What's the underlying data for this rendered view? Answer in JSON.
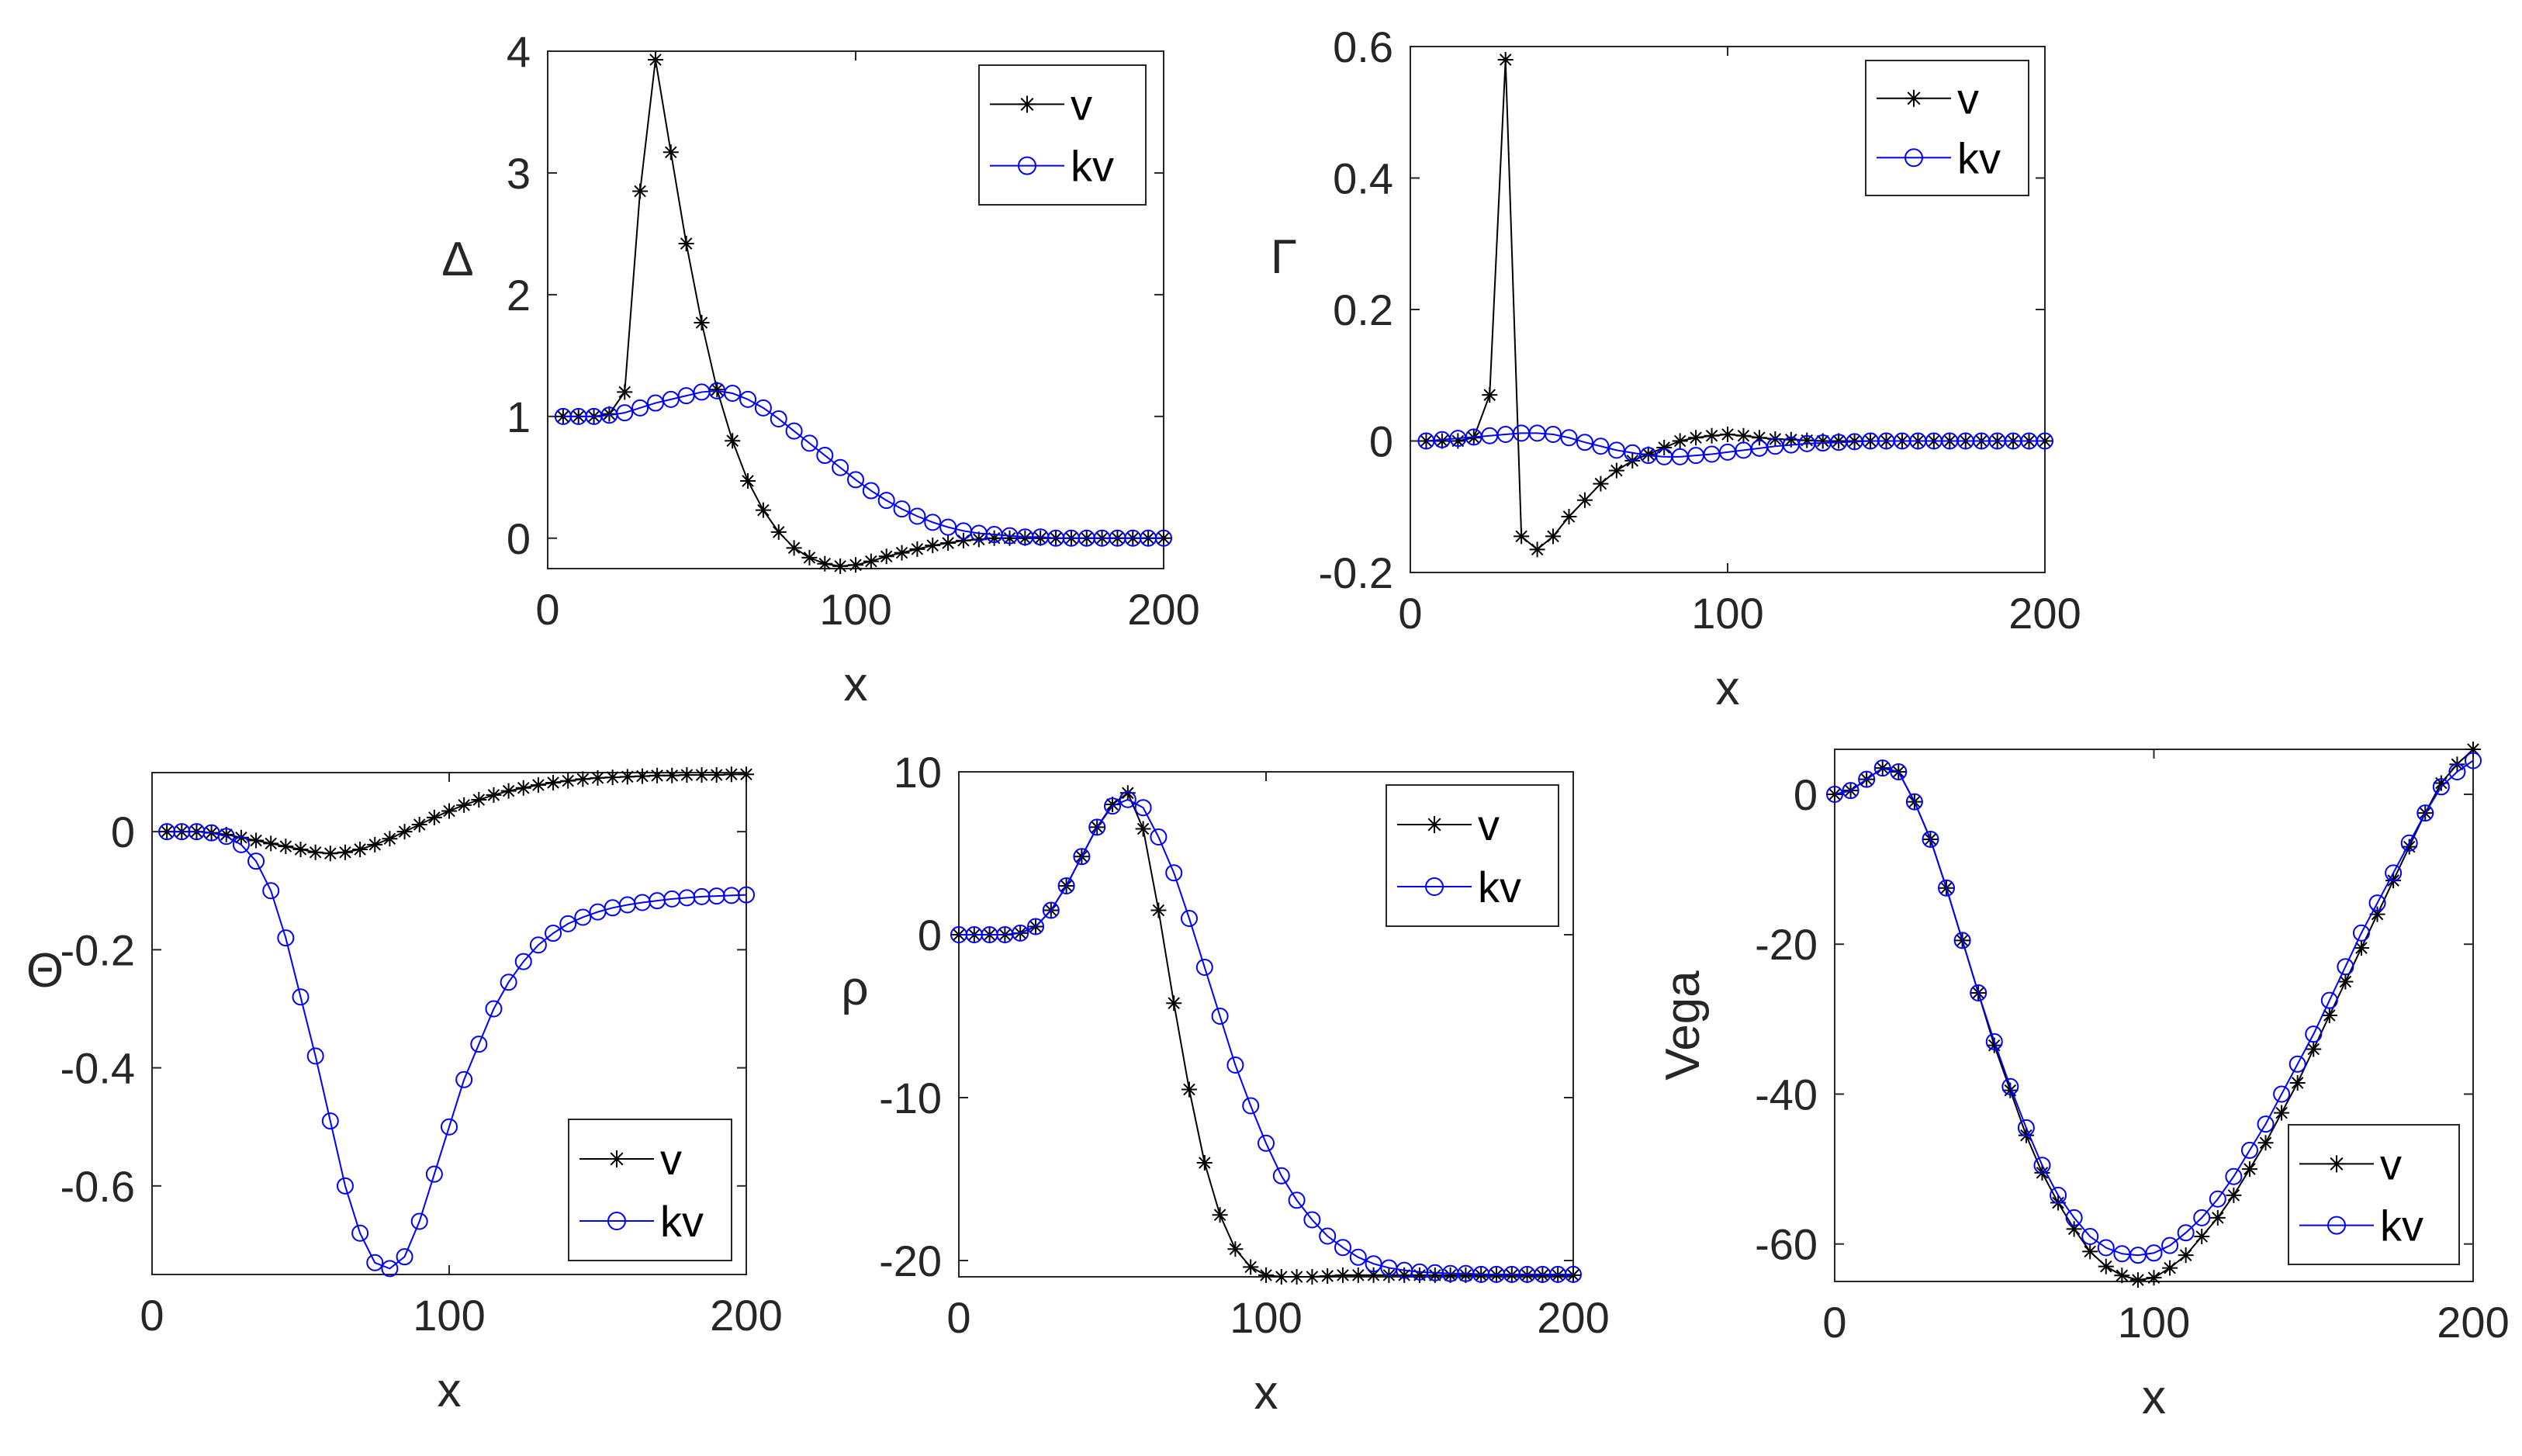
{
  "chart_data": [
    {
      "id": "delta",
      "type": "line",
      "ylabel": "Δ",
      "xlabel": "x",
      "xlim": [
        0,
        200
      ],
      "ylim": [
        -0.25,
        4
      ],
      "xticks": [
        0,
        100,
        200
      ],
      "yticks": [
        0,
        1,
        2,
        3,
        4
      ],
      "xtick_labels": [
        "0",
        "100",
        "200"
      ],
      "ytick_labels": [
        "0",
        "1",
        "2",
        "3",
        "4"
      ],
      "legend_position": "top-right",
      "series": [
        {
          "name": "v",
          "color": "#000000",
          "marker": "star",
          "x": [
            5,
            10,
            15,
            20,
            25,
            30,
            35,
            40,
            45,
            50,
            55,
            60,
            65,
            70,
            75,
            80,
            85,
            90,
            95,
            100,
            105,
            110,
            115,
            120,
            125,
            130,
            135,
            140,
            145,
            150,
            155,
            160,
            165,
            170,
            175,
            180,
            185,
            190,
            195,
            200
          ],
          "y": [
            1.0,
            1.0,
            1.0,
            1.02,
            1.2,
            2.85,
            3.93,
            3.17,
            2.42,
            1.77,
            1.22,
            0.8,
            0.47,
            0.23,
            0.05,
            -0.08,
            -0.16,
            -0.21,
            -0.23,
            -0.22,
            -0.19,
            -0.15,
            -0.12,
            -0.09,
            -0.06,
            -0.04,
            -0.02,
            -0.01,
            0,
            0,
            0,
            0,
            0,
            0,
            0,
            0,
            0,
            0,
            0,
            0
          ]
        },
        {
          "name": "kv",
          "color": "#0000ff",
          "marker": "circle",
          "x": [
            5,
            10,
            15,
            20,
            25,
            30,
            35,
            40,
            45,
            50,
            55,
            60,
            65,
            70,
            75,
            80,
            85,
            90,
            95,
            100,
            105,
            110,
            115,
            120,
            125,
            130,
            135,
            140,
            145,
            150,
            155,
            160,
            165,
            170,
            175,
            180,
            185,
            190,
            195,
            200
          ],
          "y": [
            1.0,
            1.0,
            1.0,
            1.01,
            1.03,
            1.07,
            1.11,
            1.14,
            1.17,
            1.2,
            1.21,
            1.19,
            1.14,
            1.07,
            0.98,
            0.88,
            0.78,
            0.68,
            0.58,
            0.48,
            0.39,
            0.31,
            0.24,
            0.18,
            0.13,
            0.09,
            0.06,
            0.04,
            0.03,
            0.02,
            0.01,
            0.01,
            0,
            0,
            0,
            0,
            0,
            0,
            0,
            0
          ]
        }
      ]
    },
    {
      "id": "gamma",
      "type": "line",
      "ylabel": "Γ",
      "xlabel": "x",
      "xlim": [
        0,
        200
      ],
      "ylim": [
        -0.2,
        0.6
      ],
      "xticks": [
        0,
        100,
        200
      ],
      "yticks": [
        -0.2,
        0,
        0.2,
        0.4,
        0.6
      ],
      "xtick_labels": [
        "0",
        "100",
        "200"
      ],
      "ytick_labels": [
        "-0.2",
        "0",
        "0.2",
        "0.4",
        "0.6"
      ],
      "legend_position": "top-right",
      "series": [
        {
          "name": "v",
          "color": "#000000",
          "marker": "star",
          "x": [
            5,
            10,
            15,
            20,
            25,
            30,
            35,
            40,
            45,
            50,
            55,
            60,
            65,
            70,
            75,
            80,
            85,
            90,
            95,
            100,
            105,
            110,
            115,
            120,
            125,
            130,
            135,
            140,
            145,
            150,
            155,
            160,
            165,
            170,
            175,
            180,
            185,
            190,
            195,
            200
          ],
          "y": [
            0,
            0,
            0,
            0.005,
            0.07,
            0.58,
            -0.145,
            -0.165,
            -0.145,
            -0.115,
            -0.09,
            -0.065,
            -0.045,
            -0.03,
            -0.02,
            -0.01,
            0,
            0.005,
            0.008,
            0.01,
            0.008,
            0.005,
            0.003,
            0.002,
            0.001,
            0,
            0,
            0,
            0,
            0,
            0,
            0,
            0,
            0,
            0,
            0,
            0,
            0,
            0,
            0
          ]
        },
        {
          "name": "kv",
          "color": "#0000ff",
          "marker": "circle",
          "x": [
            5,
            10,
            15,
            20,
            25,
            30,
            35,
            40,
            45,
            50,
            55,
            60,
            65,
            70,
            75,
            80,
            85,
            90,
            95,
            100,
            105,
            110,
            115,
            120,
            125,
            130,
            135,
            140,
            145,
            150,
            155,
            160,
            165,
            170,
            175,
            180,
            185,
            190,
            195,
            200
          ],
          "y": [
            0,
            0.002,
            0.004,
            0.006,
            0.008,
            0.01,
            0.012,
            0.012,
            0.01,
            0.005,
            -0.002,
            -0.008,
            -0.014,
            -0.018,
            -0.022,
            -0.024,
            -0.024,
            -0.022,
            -0.02,
            -0.017,
            -0.014,
            -0.011,
            -0.008,
            -0.006,
            -0.004,
            -0.003,
            -0.002,
            -0.001,
            0,
            0,
            0,
            0,
            0,
            0,
            0,
            0,
            0,
            0,
            0,
            0
          ]
        }
      ]
    },
    {
      "id": "theta",
      "type": "line",
      "ylabel": "Θ",
      "xlabel": "x",
      "xlim": [
        0,
        200
      ],
      "ylim": [
        -0.75,
        0.1
      ],
      "xticks": [
        0,
        100,
        200
      ],
      "yticks": [
        -0.6,
        -0.4,
        -0.2,
        0
      ],
      "xtick_labels": [
        "0",
        "100",
        "200"
      ],
      "ytick_labels": [
        "-0.6",
        "-0.4",
        "-0.2",
        "0"
      ],
      "legend_position": "bottom-right",
      "series": [
        {
          "name": "v",
          "color": "#000000",
          "marker": "star",
          "x": [
            5,
            10,
            15,
            20,
            25,
            30,
            35,
            40,
            45,
            50,
            55,
            60,
            65,
            70,
            75,
            80,
            85,
            90,
            95,
            100,
            105,
            110,
            115,
            120,
            125,
            130,
            135,
            140,
            145,
            150,
            155,
            160,
            165,
            170,
            175,
            180,
            185,
            190,
            195,
            200
          ],
          "y": [
            0,
            0,
            0,
            -0.002,
            -0.005,
            -0.01,
            -0.015,
            -0.02,
            -0.025,
            -0.03,
            -0.035,
            -0.037,
            -0.035,
            -0.03,
            -0.022,
            -0.012,
            0,
            0.012,
            0.024,
            0.035,
            0.045,
            0.054,
            0.062,
            0.069,
            0.074,
            0.079,
            0.083,
            0.086,
            0.089,
            0.091,
            0.092,
            0.093,
            0.094,
            0.095,
            0.095,
            0.096,
            0.096,
            0.096,
            0.097,
            0.097
          ]
        },
        {
          "name": "kv",
          "color": "#0000ff",
          "marker": "circle",
          "x": [
            5,
            10,
            15,
            20,
            25,
            30,
            35,
            40,
            45,
            50,
            55,
            60,
            65,
            70,
            75,
            80,
            85,
            90,
            95,
            100,
            105,
            110,
            115,
            120,
            125,
            130,
            135,
            140,
            145,
            150,
            155,
            160,
            165,
            170,
            175,
            180,
            185,
            190,
            195,
            200
          ],
          "y": [
            0,
            0,
            0,
            -0.002,
            -0.008,
            -0.022,
            -0.05,
            -0.1,
            -0.18,
            -0.28,
            -0.38,
            -0.49,
            -0.6,
            -0.68,
            -0.73,
            -0.74,
            -0.72,
            -0.66,
            -0.58,
            -0.5,
            -0.42,
            -0.36,
            -0.3,
            -0.255,
            -0.22,
            -0.192,
            -0.172,
            -0.156,
            -0.145,
            -0.136,
            -0.129,
            -0.124,
            -0.12,
            -0.117,
            -0.114,
            -0.112,
            -0.11,
            -0.109,
            -0.108,
            -0.107
          ]
        }
      ]
    },
    {
      "id": "rho",
      "type": "line",
      "ylabel": "ρ",
      "xlabel": "x",
      "xlim": [
        0,
        200
      ],
      "ylim": [
        -21,
        10
      ],
      "xticks": [
        0,
        100,
        200
      ],
      "yticks": [
        -20,
        -10,
        0,
        10
      ],
      "xtick_labels": [
        "0",
        "100",
        "200"
      ],
      "ytick_labels": [
        "-20",
        "-10",
        "0",
        "10"
      ],
      "legend_position": "top-right",
      "series": [
        {
          "name": "v",
          "color": "#000000",
          "marker": "star",
          "x": [
            0,
            5,
            10,
            15,
            20,
            25,
            30,
            35,
            40,
            45,
            50,
            55,
            60,
            65,
            70,
            75,
            80,
            85,
            90,
            95,
            100,
            105,
            110,
            115,
            120,
            125,
            130,
            135,
            140,
            145,
            150,
            155,
            160,
            165,
            170,
            175,
            180,
            185,
            190,
            195,
            200
          ],
          "y": [
            0,
            0,
            0,
            0,
            0.1,
            0.5,
            1.5,
            3.0,
            4.8,
            6.6,
            8.0,
            8.7,
            6.5,
            1.5,
            -4.2,
            -9.5,
            -14,
            -17.2,
            -19.3,
            -20.4,
            -20.9,
            -21.0,
            -21.0,
            -21.0,
            -20.95,
            -20.9,
            -20.9,
            -20.9,
            -20.9,
            -20.9,
            -20.9,
            -20.9,
            -20.9,
            -20.9,
            -20.9,
            -20.9,
            -20.9,
            -20.9,
            -20.9,
            -20.9,
            -20.9
          ]
        },
        {
          "name": "kv",
          "color": "#0000ff",
          "marker": "circle",
          "x": [
            0,
            5,
            10,
            15,
            20,
            25,
            30,
            35,
            40,
            45,
            50,
            55,
            60,
            65,
            70,
            75,
            80,
            85,
            90,
            95,
            100,
            105,
            110,
            115,
            120,
            125,
            130,
            135,
            140,
            145,
            150,
            155,
            160,
            165,
            170,
            175,
            180,
            185,
            190,
            195,
            200
          ],
          "y": [
            0,
            0,
            0,
            0,
            0.1,
            0.5,
            1.5,
            3.0,
            4.8,
            6.6,
            7.9,
            8.3,
            7.8,
            6.0,
            3.8,
            1.0,
            -2.0,
            -5.0,
            -8.0,
            -10.5,
            -12.8,
            -14.8,
            -16.3,
            -17.5,
            -18.5,
            -19.2,
            -19.8,
            -20.2,
            -20.45,
            -20.6,
            -20.7,
            -20.75,
            -20.8,
            -20.8,
            -20.85,
            -20.85,
            -20.85,
            -20.85,
            -20.85,
            -20.85,
            -20.85
          ]
        }
      ]
    },
    {
      "id": "vega",
      "type": "line",
      "ylabel": "Vega",
      "xlabel": "x",
      "xlim": [
        0,
        200
      ],
      "ylim": [
        -65,
        6
      ],
      "xticks": [
        0,
        100,
        200
      ],
      "yticks": [
        -60,
        -40,
        -20,
        0
      ],
      "xtick_labels": [
        "0",
        "100",
        "200"
      ],
      "ytick_labels": [
        "-60",
        "-40",
        "-20",
        "0"
      ],
      "legend_position": "bottom-right",
      "series": [
        {
          "name": "v",
          "color": "#000000",
          "marker": "star",
          "x": [
            0,
            5,
            10,
            15,
            20,
            25,
            30,
            35,
            40,
            45,
            50,
            55,
            60,
            65,
            70,
            75,
            80,
            85,
            90,
            95,
            100,
            105,
            110,
            115,
            120,
            125,
            130,
            135,
            140,
            145,
            150,
            155,
            160,
            165,
            170,
            175,
            180,
            185,
            190,
            195,
            200
          ],
          "y": [
            0,
            0.5,
            2,
            3.5,
            3,
            -1,
            -6,
            -12.5,
            -19.5,
            -26.5,
            -33.5,
            -39.5,
            -45.5,
            -50.5,
            -54.5,
            -58,
            -61,
            -63,
            -64.2,
            -64.8,
            -64.5,
            -63.2,
            -61.5,
            -59,
            -56.5,
            -53.5,
            -50,
            -46.5,
            -42.5,
            -38.5,
            -34,
            -29.5,
            -25,
            -20.5,
            -16,
            -11.5,
            -7,
            -2.5,
            1.5,
            4,
            6
          ]
        },
        {
          "name": "kv",
          "color": "#0000ff",
          "marker": "circle",
          "x": [
            0,
            5,
            10,
            15,
            20,
            25,
            30,
            35,
            40,
            45,
            50,
            55,
            60,
            65,
            70,
            75,
            80,
            85,
            90,
            95,
            100,
            105,
            110,
            115,
            120,
            125,
            130,
            135,
            140,
            145,
            150,
            155,
            160,
            165,
            170,
            175,
            180,
            185,
            190,
            195,
            200
          ],
          "y": [
            0,
            0.5,
            2,
            3.5,
            3,
            -1,
            -6,
            -12.5,
            -19.5,
            -26.5,
            -33,
            -39,
            -44.5,
            -49.5,
            -53.5,
            -56.5,
            -59,
            -60.5,
            -61.3,
            -61.5,
            -61.2,
            -60.2,
            -58.5,
            -56.5,
            -54,
            -51,
            -47.5,
            -44,
            -40,
            -36,
            -32,
            -27.5,
            -23,
            -18.5,
            -14.5,
            -10.5,
            -6.5,
            -2.5,
            1,
            3,
            4.5
          ]
        }
      ]
    }
  ]
}
